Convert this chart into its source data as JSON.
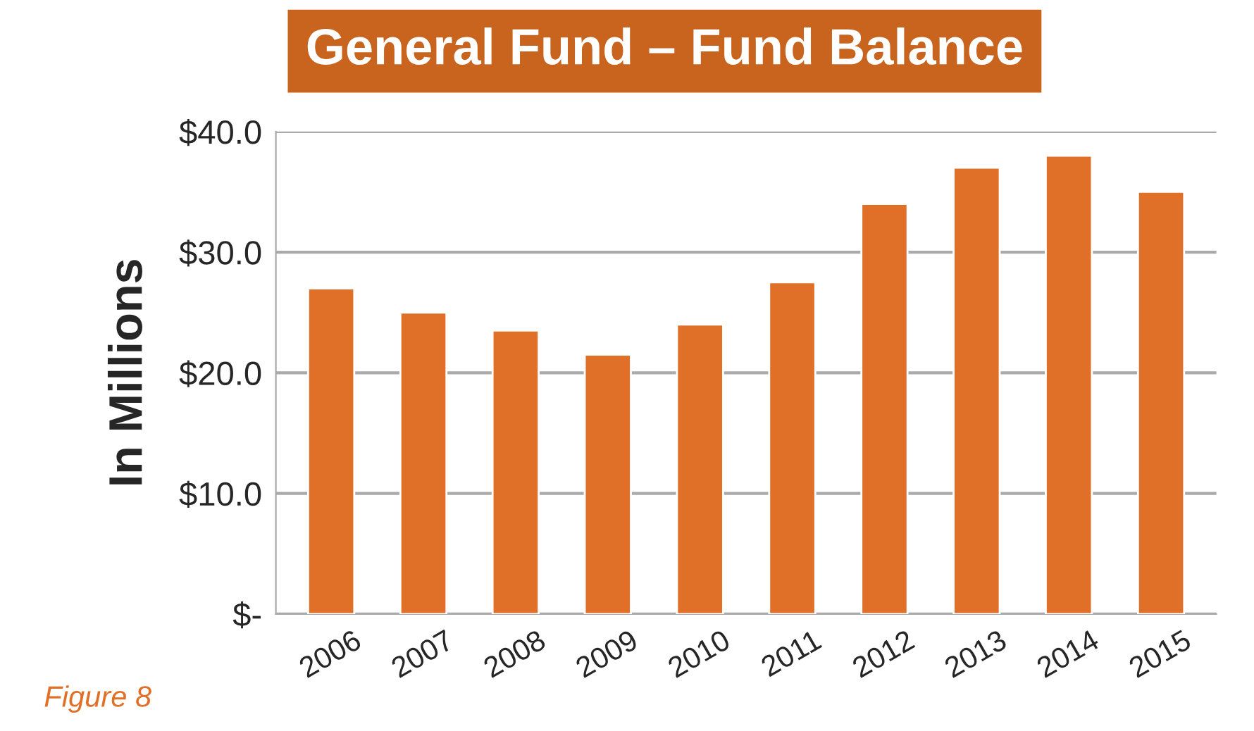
{
  "chart_data": {
    "type": "bar",
    "title": "General Fund – Fund Balance",
    "ylabel": "In Millions",
    "categories": [
      "2006",
      "2007",
      "2008",
      "2009",
      "2010",
      "2011",
      "2012",
      "2013",
      "2014",
      "2015"
    ],
    "values": [
      27,
      25,
      23.5,
      21.5,
      24,
      27.5,
      34,
      37,
      38,
      35
    ],
    "color": "#e07028",
    "ylim": [
      0,
      40
    ],
    "yticks": [
      {
        "value": 0,
        "label": "$-"
      },
      {
        "value": 10,
        "label": "$10.0"
      },
      {
        "value": 20,
        "label": "$20.0"
      },
      {
        "value": 30,
        "label": "$30.0"
      },
      {
        "value": 40,
        "label": "$40.0"
      }
    ],
    "grid": "y",
    "annotations": [
      "Figure 8"
    ]
  }
}
